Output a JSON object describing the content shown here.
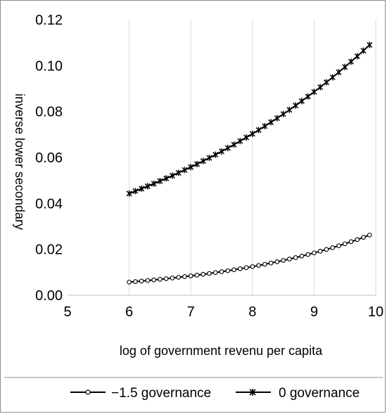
{
  "chart_data": {
    "type": "line",
    "title": "",
    "xlabel": "log of government revenu per capita",
    "ylabel": "inverse lower secondary",
    "xlim": [
      5,
      10
    ],
    "ylim": [
      0,
      0.12
    ],
    "x_ticks": [
      5,
      6,
      7,
      8,
      9,
      10
    ],
    "x_tick_labels": [
      "5",
      "6",
      "7",
      "8",
      "9",
      "10"
    ],
    "y_ticks": [
      0,
      0.02,
      0.04,
      0.06,
      0.08,
      0.1,
      0.12
    ],
    "y_tick_labels": [
      "0.00",
      "0.02",
      "0.04",
      "0.06",
      "0.08",
      "0.10",
      "0.12"
    ],
    "grid": {
      "x": true,
      "y": false
    },
    "legend_position": "bottom",
    "series": [
      {
        "name": "−1.5 governance",
        "marker": "circle",
        "color": "#000000",
        "x_start": 6,
        "x_end": 9.9,
        "x_step": 0.1,
        "y_start": 0.0057,
        "y_end": 0.0262
      },
      {
        "name": "0 governance",
        "marker": "asterisk",
        "color": "#000000",
        "x_start": 6,
        "x_end": 9.9,
        "x_step": 0.1,
        "y_start": 0.0443,
        "y_end": 0.109
      }
    ]
  }
}
